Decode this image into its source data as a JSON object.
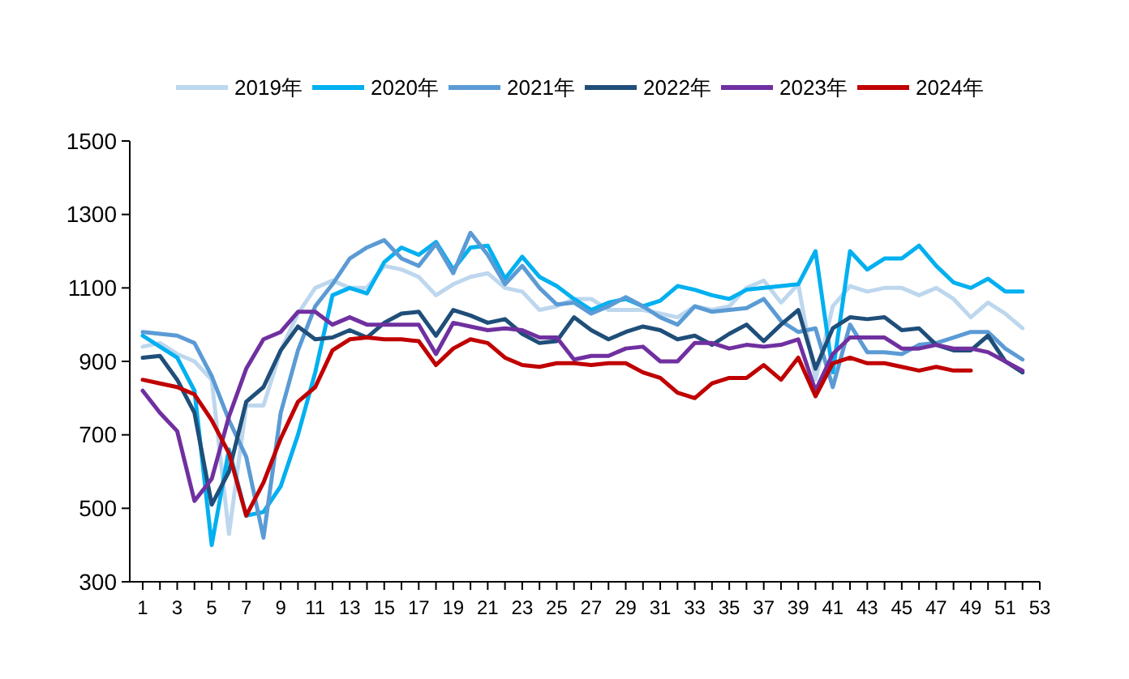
{
  "chart_data": {
    "type": "line",
    "x": [
      1,
      2,
      3,
      4,
      5,
      6,
      7,
      8,
      9,
      10,
      11,
      12,
      13,
      14,
      15,
      16,
      17,
      18,
      19,
      20,
      21,
      22,
      23,
      24,
      25,
      26,
      27,
      28,
      29,
      30,
      31,
      32,
      33,
      34,
      35,
      36,
      37,
      38,
      39,
      40,
      41,
      42,
      43,
      44,
      45,
      46,
      47,
      48,
      49,
      50,
      51,
      52
    ],
    "series": [
      {
        "name": "2019年",
        "color": "#bdd7ee",
        "values": [
          940,
          950,
          920,
          900,
          850,
          430,
          780,
          780,
          930,
          1030,
          1100,
          1120,
          1100,
          1100,
          1160,
          1150,
          1130,
          1080,
          1110,
          1130,
          1140,
          1100,
          1090,
          1040,
          1050,
          1070,
          1070,
          1040,
          1040,
          1040,
          1030,
          1020,
          1050,
          1040,
          1050,
          1100,
          1120,
          1060,
          1110,
          850,
          1050,
          1105,
          1090,
          1100,
          1100,
          1080,
          1100,
          1070,
          1020,
          1060,
          1030,
          990
        ]
      },
      {
        "name": "2020年",
        "color": "#00b0f0",
        "values": [
          970,
          940,
          910,
          820,
          400,
          660,
          480,
          490,
          560,
          700,
          870,
          1080,
          1100,
          1085,
          1170,
          1210,
          1190,
          1225,
          1150,
          1210,
          1215,
          1125,
          1185,
          1130,
          1105,
          1070,
          1040,
          1060,
          1070,
          1050,
          1065,
          1105,
          1095,
          1080,
          1070,
          1095,
          1100,
          1105,
          1110,
          1200,
          870,
          1200,
          1150,
          1180,
          1180,
          1215,
          1160,
          1115,
          1100,
          1125,
          1090,
          1090
        ]
      },
      {
        "name": "2021年",
        "color": "#5b9bd5",
        "values": [
          980,
          975,
          970,
          950,
          860,
          740,
          640,
          420,
          760,
          930,
          1050,
          1110,
          1180,
          1210,
          1230,
          1180,
          1160,
          1220,
          1140,
          1250,
          1190,
          1110,
          1160,
          1100,
          1055,
          1060,
          1030,
          1050,
          1075,
          1050,
          1020,
          1000,
          1050,
          1035,
          1040,
          1045,
          1070,
          1010,
          980,
          990,
          830,
          1000,
          925,
          925,
          920,
          945,
          950,
          965,
          980,
          980,
          935,
          905
        ]
      },
      {
        "name": "2022年",
        "color": "#1f4e79",
        "values": [
          910,
          915,
          850,
          760,
          510,
          600,
          790,
          830,
          930,
          995,
          960,
          965,
          985,
          965,
          1005,
          1030,
          1035,
          970,
          1040,
          1025,
          1005,
          1015,
          975,
          950,
          955,
          1020,
          985,
          960,
          980,
          995,
          985,
          960,
          970,
          945,
          975,
          1000,
          955,
          1000,
          1040,
          880,
          990,
          1020,
          1015,
          1020,
          985,
          990,
          945,
          930,
          930,
          970,
          900,
          870
        ]
      },
      {
        "name": "2023年",
        "color": "#7030a0",
        "values": [
          820,
          760,
          710,
          520,
          580,
          750,
          880,
          960,
          980,
          1035,
          1035,
          1000,
          1020,
          1000,
          1000,
          1000,
          1000,
          920,
          1005,
          995,
          985,
          990,
          985,
          965,
          965,
          905,
          915,
          915,
          935,
          940,
          900,
          900,
          950,
          950,
          935,
          945,
          940,
          945,
          960,
          820,
          920,
          965,
          965,
          965,
          935,
          935,
          945,
          935,
          935,
          925,
          900,
          875
        ]
      },
      {
        "name": "2024年",
        "color": "#c00000",
        "values": [
          850,
          840,
          830,
          810,
          740,
          650,
          480,
          570,
          690,
          790,
          830,
          930,
          960,
          965,
          960,
          960,
          955,
          890,
          935,
          960,
          950,
          910,
          890,
          885,
          895,
          895,
          890,
          895,
          895,
          870,
          855,
          815,
          800,
          840,
          855,
          855,
          890,
          850,
          910,
          805,
          895,
          910,
          895,
          895,
          885,
          875,
          885,
          875,
          875,
          null,
          null,
          null
        ]
      }
    ],
    "xlim": [
      0.25,
      53
    ],
    "xticks": [
      1,
      {
        "value": 2,
        "label": null
      },
      3,
      {
        "value": 4,
        "label": null
      },
      5,
      {
        "value": 6,
        "label": null
      },
      7,
      {
        "value": 8,
        "label": null
      },
      9,
      {
        "value": 10,
        "label": null
      },
      11,
      {
        "value": 12,
        "label": null
      },
      13,
      {
        "value": 14,
        "label": null
      },
      15,
      {
        "value": 16,
        "label": null
      },
      17,
      {
        "value": 18,
        "label": null
      },
      19,
      {
        "value": 20,
        "label": null
      },
      21,
      {
        "value": 22,
        "label": null
      },
      23,
      {
        "value": 24,
        "label": null
      },
      25,
      {
        "value": 26,
        "label": null
      },
      27,
      {
        "value": 28,
        "label": null
      },
      29,
      {
        "value": 30,
        "label": null
      },
      31,
      {
        "value": 32,
        "label": null
      },
      33,
      {
        "value": 34,
        "label": null
      },
      35,
      {
        "value": 36,
        "label": null
      },
      37,
      {
        "value": 38,
        "label": null
      },
      39,
      {
        "value": 40,
        "label": null
      },
      41,
      {
        "value": 42,
        "label": null
      },
      43,
      {
        "value": 44,
        "label": null
      },
      45,
      {
        "value": 46,
        "label": null
      },
      47,
      {
        "value": 48,
        "label": null
      },
      49,
      {
        "value": 50,
        "label": null
      },
      51,
      {
        "value": 52,
        "label": null
      },
      53
    ],
    "ylim": [
      300,
      1500
    ],
    "yticks": [
      300,
      500,
      700,
      900,
      1100,
      1300,
      1500
    ],
    "grid": false,
    "legend": "top",
    "marker": "none",
    "line_style": "solid"
  }
}
